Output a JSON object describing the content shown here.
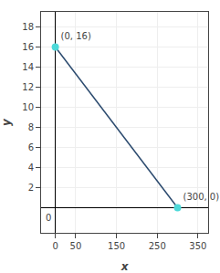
{
  "chart_data": {
    "type": "line",
    "x": [
      0,
      300
    ],
    "values": [
      16,
      0
    ],
    "value_labels": [
      "(0, 16)",
      "(300, 0)"
    ],
    "data_labels": true,
    "color": "#2b4a6e",
    "colors": [
      "#4dd9d9",
      "#4dd9d9"
    ],
    "marker": "circle",
    "xlim": [
      -35,
      375
    ],
    "ylim": [
      -2.5,
      19.5
    ],
    "xticks": [
      0,
      50,
      150,
      250,
      350
    ],
    "yticks": [
      2,
      4,
      6,
      8,
      10,
      12,
      14,
      16,
      18
    ],
    "xlabel": "x",
    "ylabel": "y",
    "grid": true,
    "annotations": [
      {
        "text": "0",
        "x": 0,
        "y": 0
      }
    ]
  }
}
